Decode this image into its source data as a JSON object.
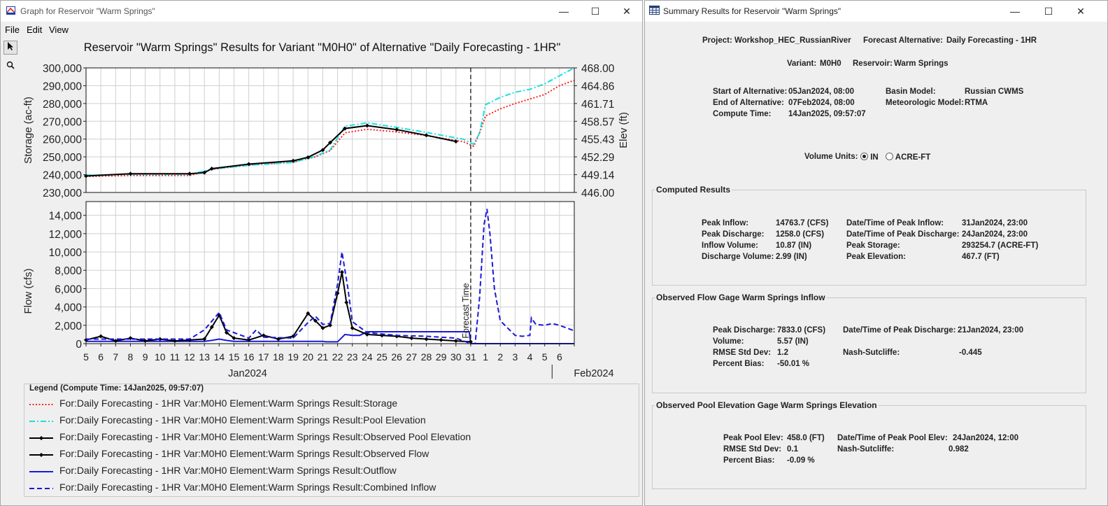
{
  "graph_window": {
    "title": "Graph for Reservoir \"Warm Springs\"",
    "menu": [
      "File",
      "Edit",
      "View"
    ],
    "controls": {
      "minimize": "—",
      "maximize": "☐",
      "close": "✕"
    },
    "chart_title": "Reservoir \"Warm Springs\" Results for Variant \"M0H0\" of Alternative \"Daily Forecasting - 1HR\"",
    "legend_title": "Legend (Compute Time: 14Jan2025, 09:57:07)",
    "legend": [
      {
        "label": "For:Daily Forecasting - 1HR Var:M0H0 Element:Warm Springs Result:Storage",
        "color": "#ff2020",
        "style": "dotted"
      },
      {
        "label": "For:Daily Forecasting - 1HR Var:M0H0 Element:Warm Springs Result:Pool Elevation",
        "color": "#18e0e0",
        "style": "dashdot"
      },
      {
        "label": "For:Daily Forecasting - 1HR Var:M0H0 Element:Warm Springs Result:Observed Pool Elevation",
        "color": "#000000",
        "style": "marker"
      },
      {
        "label": "For:Daily Forecasting - 1HR Var:M0H0 Element:Warm Springs Result:Observed Flow",
        "color": "#000000",
        "style": "marker"
      },
      {
        "label": "For:Daily Forecasting - 1HR Var:M0H0 Element:Warm Springs Result:Outflow",
        "color": "#1a1ad8",
        "style": "solid"
      },
      {
        "label": "For:Daily Forecasting - 1HR Var:M0H0 Element:Warm Springs Result:Combined Inflow",
        "color": "#1a1ad8",
        "style": "dashed"
      }
    ]
  },
  "chart_data": [
    {
      "type": "line",
      "ylabel": "Storage (ac-ft)",
      "y2label": "Elev (ft)",
      "ylim": [
        230000,
        300000
      ],
      "y2lim": [
        446.0,
        468.0
      ],
      "yticks": [
        "230,000",
        "240,000",
        "250,000",
        "260,000",
        "270,000",
        "280,000",
        "290,000",
        "300,000"
      ],
      "y2ticks": [
        "446.00",
        "449.14",
        "452.29",
        "455.43",
        "458.57",
        "461.71",
        "464.86",
        "468.00"
      ],
      "x_start_day": 5,
      "x_end_day": 38,
      "forecast_day": 31,
      "grid": true,
      "series": [
        {
          "name": "Storage",
          "color": "#ff2020",
          "dash": "2,2.5",
          "x": [
            5,
            8,
            12,
            13.5,
            16,
            19,
            20.5,
            21.5,
            22.5,
            24,
            26,
            28,
            30.5,
            31.2,
            31.6,
            32,
            33,
            34,
            35,
            36,
            37,
            38
          ],
          "y": [
            239000,
            239500,
            239500,
            243000,
            245500,
            247000,
            250000,
            253500,
            263500,
            265500,
            264000,
            262000,
            258500,
            256000,
            263500,
            273000,
            277000,
            280000,
            282500,
            285000,
            290000,
            293000
          ]
        },
        {
          "name": "Pool Elevation",
          "color": "#18e0e0",
          "dash": "8,3,2,3",
          "x": [
            5,
            8,
            12,
            13.5,
            16,
            19,
            20.5,
            21.5,
            22.5,
            24,
            26,
            28,
            30.5,
            31.2,
            31.6,
            32,
            33,
            34,
            35,
            36,
            37,
            38
          ],
          "y": [
            449.05,
            449.2,
            449.2,
            450.1,
            450.8,
            451.3,
            452.4,
            453.5,
            457.7,
            458.3,
            457.5,
            456.6,
            455.4,
            454.5,
            456.5,
            461.5,
            462.8,
            463.7,
            464.2,
            465.2,
            466.6,
            468.0
          ]
        },
        {
          "name": "Observed Pool Elevation",
          "color": "#000000",
          "dash": "",
          "x": [
            5,
            8,
            12,
            13,
            13.5,
            16,
            19,
            20,
            21,
            21.5,
            22.5,
            24,
            26,
            28,
            30
          ],
          "y": [
            448.9,
            449.3,
            449.3,
            449.5,
            450.2,
            451.0,
            451.6,
            452.2,
            453.5,
            454.8,
            457.3,
            457.8,
            457.1,
            456.1,
            455.0
          ]
        }
      ]
    },
    {
      "type": "line",
      "ylabel": "Flow (cfs)",
      "ylim": [
        0,
        15500
      ],
      "yticks": [
        "0",
        "2,000",
        "4,000",
        "6,000",
        "8,000",
        "10,000",
        "12,000",
        "14,000"
      ],
      "xticks": [
        "5",
        "6",
        "7",
        "8",
        "9",
        "10",
        "11",
        "12",
        "13",
        "14",
        "15",
        "16",
        "17",
        "18",
        "19",
        "20",
        "21",
        "22",
        "23",
        "24",
        "25",
        "26",
        "27",
        "28",
        "29",
        "30",
        "31",
        "1",
        "2",
        "3",
        "4",
        "5",
        "6"
      ],
      "xgroups": [
        "Jan2024",
        "Feb2024"
      ],
      "forecast_label": "Forecast Time",
      "forecast_day": 31,
      "grid": true,
      "series": [
        {
          "name": "Combined Inflow",
          "color": "#1a1ad8",
          "dash": "7,4",
          "x": [
            5,
            12,
            13,
            14,
            14.5,
            16,
            16.5,
            17,
            19,
            20,
            20.5,
            21,
            21.5,
            22,
            22.3,
            22.7,
            23,
            24,
            26,
            28,
            30,
            31,
            31.3,
            31.6,
            31.9,
            32.1,
            32.3,
            32.6,
            33,
            34,
            34.5,
            35,
            35.1,
            35.4,
            36,
            36.5,
            37,
            38
          ],
          "y": [
            500,
            500,
            1500,
            3400,
            1500,
            600,
            1500,
            700,
            600,
            2300,
            3000,
            2100,
            2200,
            6500,
            10000,
            6000,
            2400,
            1200,
            900,
            800,
            600,
            0,
            0,
            5000,
            13000,
            14700,
            12000,
            6000,
            2500,
            900,
            800,
            900,
            2800,
            2100,
            2000,
            2200,
            2000,
            1400
          ]
        },
        {
          "name": "Outflow",
          "color": "#1a1ad8",
          "dash": "",
          "x": [
            5,
            13,
            13.5,
            14,
            14.5,
            15,
            19,
            20,
            21,
            21.2,
            21.8,
            22,
            22.5,
            23,
            23.5,
            24,
            30.9,
            31,
            31.05,
            38
          ],
          "y": [
            250,
            250,
            350,
            500,
            350,
            250,
            250,
            250,
            250,
            200,
            200,
            200,
            1000,
            900,
            900,
            1300,
            1300,
            0,
            0,
            0
          ]
        },
        {
          "name": "Observed Flow",
          "color": "#000000",
          "dash": "",
          "x": [
            5,
            6,
            7,
            8,
            9,
            10,
            11,
            12,
            13,
            13.5,
            14,
            14.5,
            15,
            16,
            17,
            18,
            19,
            20,
            20.5,
            21,
            21.5,
            22,
            22.3,
            22.6,
            23,
            24,
            25,
            26,
            27,
            28,
            29,
            30,
            31
          ],
          "y": [
            400,
            800,
            300,
            600,
            300,
            500,
            300,
            400,
            500,
            1800,
            3100,
            1200,
            600,
            400,
            900,
            500,
            800,
            3300,
            2500,
            1700,
            2000,
            5500,
            7800,
            4500,
            1700,
            1000,
            900,
            800,
            600,
            500,
            400,
            300,
            200
          ]
        }
      ]
    }
  ],
  "summary_window": {
    "title": "Summary Results for Reservoir \"Warm Springs\"",
    "controls": {
      "minimize": "—",
      "maximize": "☐",
      "close": "✕"
    },
    "header": {
      "project_label": "Project:",
      "project": "Workshop_HEC_RussianRiver",
      "forecast_alt_label": "Forecast Alternative:",
      "forecast_alt": "Daily Forecasting - 1HR",
      "variant_label": "Variant:",
      "variant": "M0H0",
      "reservoir_label": "Reservoir:",
      "reservoir": "Warm Springs",
      "start_label": "Start of Alternative:",
      "start": "05Jan2024, 08:00",
      "end_label": "End of Alternative:",
      "end": "07Feb2024, 08:00",
      "compute_label": "Compute Time:",
      "compute": "14Jan2025, 09:57:07",
      "basin_label": "Basin Model:",
      "basin": "Russian CWMS",
      "met_label": "Meteorologic Model:",
      "met": "RTMA"
    },
    "volume_units": {
      "label": "Volume Units:",
      "options": [
        "IN",
        "ACRE-FT"
      ],
      "selected": "IN"
    },
    "computed": {
      "title": "Computed Results",
      "peak_inflow_label": "Peak Inflow:",
      "peak_inflow": "14763.7 (CFS)",
      "peak_discharge_label": "Peak Discharge:",
      "peak_discharge": "1258.0 (CFS)",
      "inflow_volume_label": "Inflow Volume:",
      "inflow_volume": "10.87 (IN)",
      "discharge_volume_label": "Discharge Volume:",
      "discharge_volume": "2.99 (IN)",
      "dt_peak_inflow_label": "Date/Time of Peak Inflow:",
      "dt_peak_inflow": "31Jan2024, 23:00",
      "dt_peak_discharge_label": "Date/Time of Peak Discharge:",
      "dt_peak_discharge": "24Jan2024, 23:00",
      "peak_storage_label": "Peak Storage:",
      "peak_storage": "293254.7 (ACRE-FT)",
      "peak_elevation_label": "Peak Elevation:",
      "peak_elevation": "467.7 (FT)"
    },
    "obs_flow": {
      "title": "Observed Flow Gage Warm Springs Inflow",
      "peak_discharge_label": "Peak Discharge:",
      "peak_discharge": "7833.0 (CFS)",
      "volume_label": "Volume:",
      "volume": "5.57 (IN)",
      "rmse_label": "RMSE Std Dev:",
      "rmse": "1.2",
      "bias_label": "Percent Bias:",
      "bias": "-50.01 %",
      "dt_label": "Date/Time of Peak Discharge:",
      "dt": "21Jan2024, 23:00",
      "nash_label": "Nash-Sutcliffe:",
      "nash": "-0.445"
    },
    "obs_elev": {
      "title": "Observed Pool Elevation Gage Warm Springs Elevation",
      "peak_label": "Peak Pool Elev:",
      "peak": "458.0 (FT)",
      "rmse_label": "RMSE Std Dev:",
      "rmse": "0.1",
      "bias_label": "Percent Bias:",
      "bias": "-0.09 %",
      "dt_label": "Date/Time of Peak Pool Elev:",
      "dt": "24Jan2024, 12:00",
      "nash_label": "Nash-Sutcliffe:",
      "nash": "0.982"
    }
  }
}
